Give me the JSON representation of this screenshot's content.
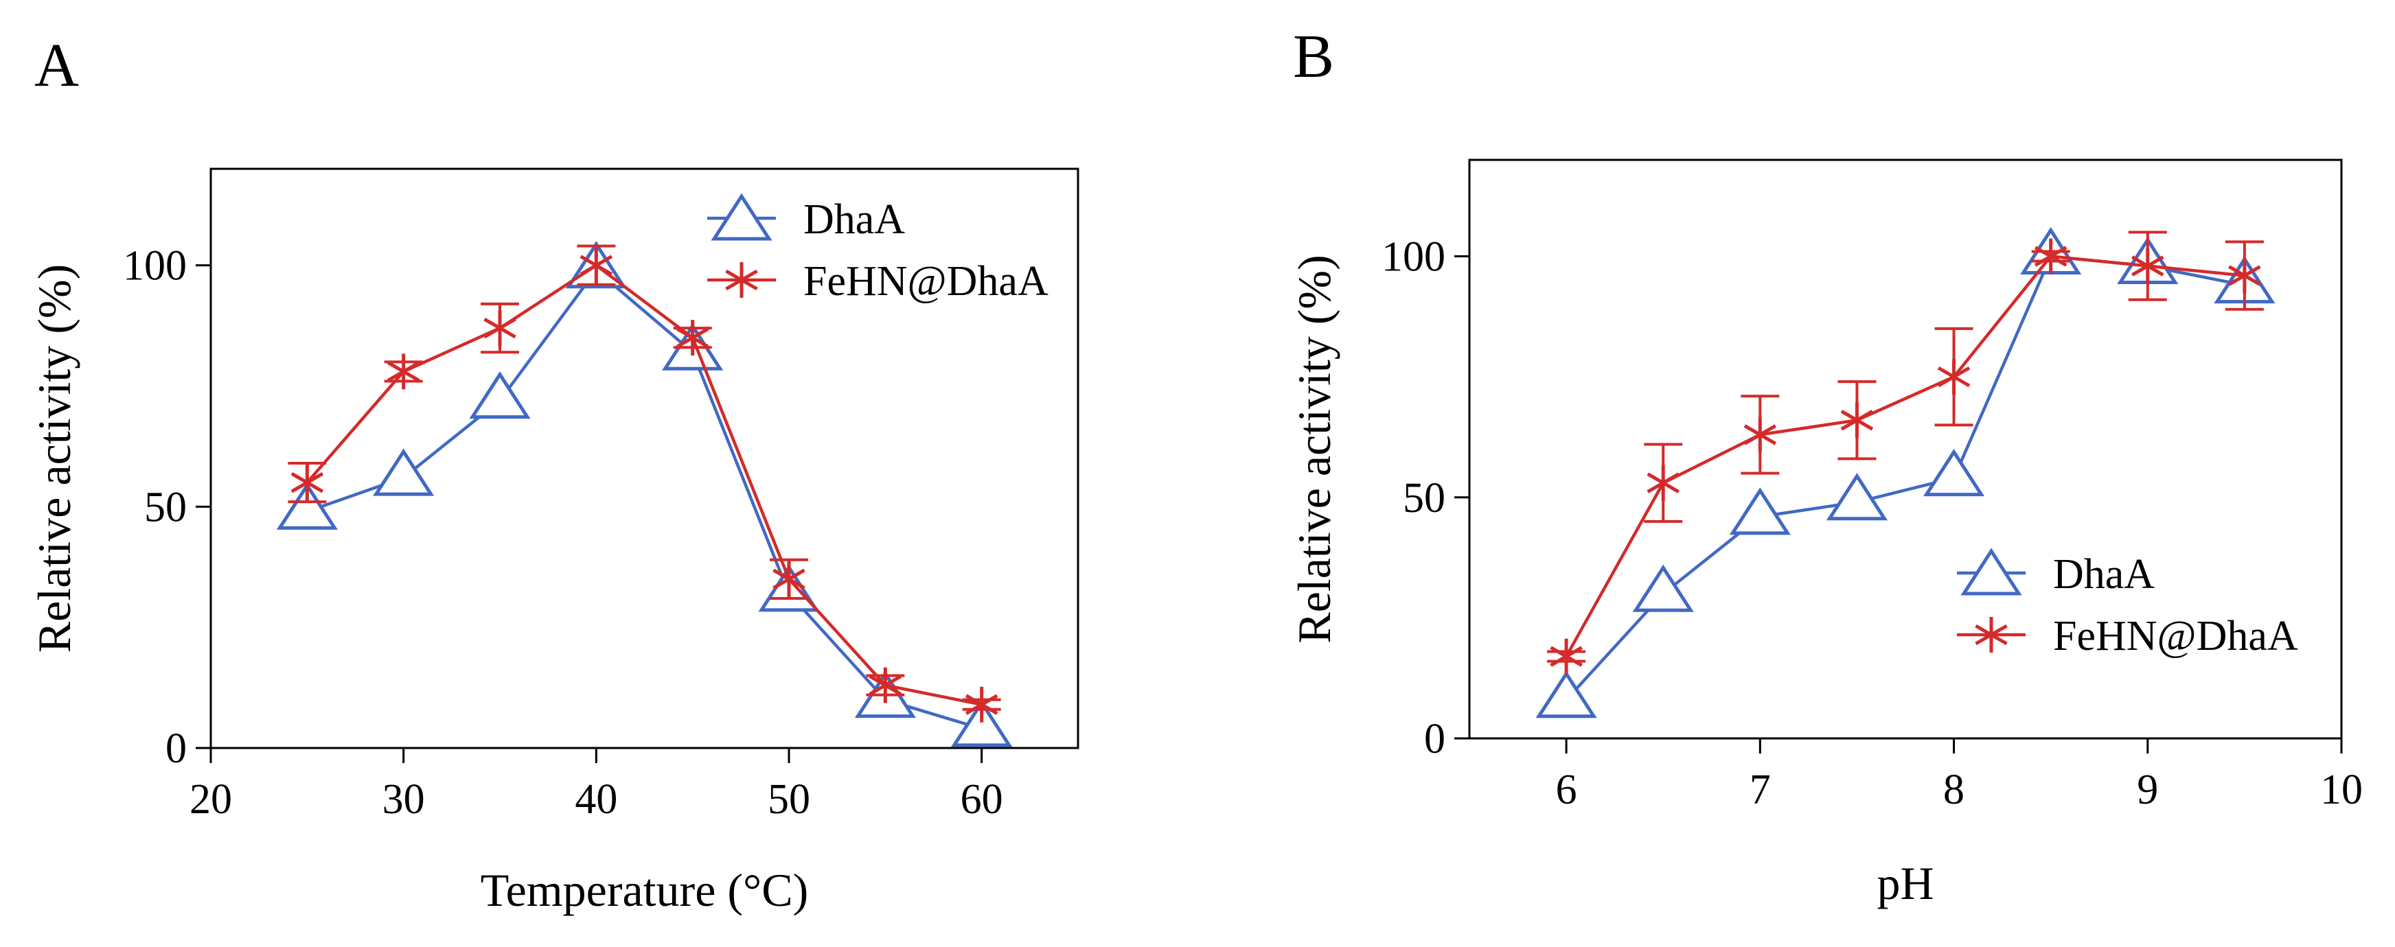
{
  "colors": {
    "dhaa": "#4169c4",
    "fehn": "#d42a2a",
    "axis": "#000000"
  },
  "chart_data": [
    {
      "panel_label": "A",
      "type": "line",
      "xlabel": "Temperature (°C)",
      "ylabel": "Relative activity (%)",
      "xlim": [
        20,
        65
      ],
      "ylim": [
        0,
        120
      ],
      "xticks": [
        20,
        30,
        40,
        50,
        60
      ],
      "yticks": [
        0,
        50,
        100
      ],
      "grid": false,
      "legend_position": "top-right",
      "series": [
        {
          "name": "DhaA",
          "marker": "triangle-open",
          "color": "#4169c4",
          "x": [
            25,
            30,
            35,
            40,
            45,
            50,
            55,
            60
          ],
          "y": [
            49,
            56,
            72,
            99,
            82,
            32,
            10,
            4
          ],
          "err": [
            0,
            0,
            0,
            0,
            0,
            0,
            0,
            0
          ]
        },
        {
          "name": "FeHN@DhaA",
          "marker": "asterisk",
          "color": "#d42a2a",
          "x": [
            25,
            30,
            35,
            40,
            45,
            50,
            55,
            60
          ],
          "y": [
            55,
            78,
            87,
            100,
            85,
            35,
            13,
            9
          ],
          "err": [
            4,
            2,
            5,
            4,
            2,
            4,
            2,
            1
          ]
        }
      ]
    },
    {
      "panel_label": "B",
      "type": "line",
      "xlabel": "pH",
      "ylabel": "Relative activity (%)",
      "xlim": [
        5.5,
        10
      ],
      "ylim": [
        0,
        120
      ],
      "xticks": [
        6,
        7,
        8,
        9,
        10
      ],
      "yticks": [
        0,
        50,
        100
      ],
      "grid": false,
      "legend_position": "center-right",
      "series": [
        {
          "name": "DhaA",
          "marker": "triangle-open",
          "color": "#4169c4",
          "x": [
            6,
            6.5,
            7,
            7.5,
            8,
            8.5,
            9,
            9.5
          ],
          "y": [
            8,
            30,
            46,
            49,
            54,
            100,
            98,
            94
          ],
          "err": [
            0,
            0,
            0,
            0,
            0,
            0,
            0,
            0
          ]
        },
        {
          "name": "FeHN@DhaA",
          "marker": "asterisk",
          "color": "#d42a2a",
          "x": [
            6,
            6.5,
            7,
            7.5,
            8,
            8.5,
            9,
            9.5
          ],
          "y": [
            17,
            53,
            63,
            66,
            75,
            100,
            98,
            96
          ],
          "err": [
            1,
            8,
            8,
            8,
            10,
            1,
            7,
            7
          ]
        }
      ]
    }
  ]
}
